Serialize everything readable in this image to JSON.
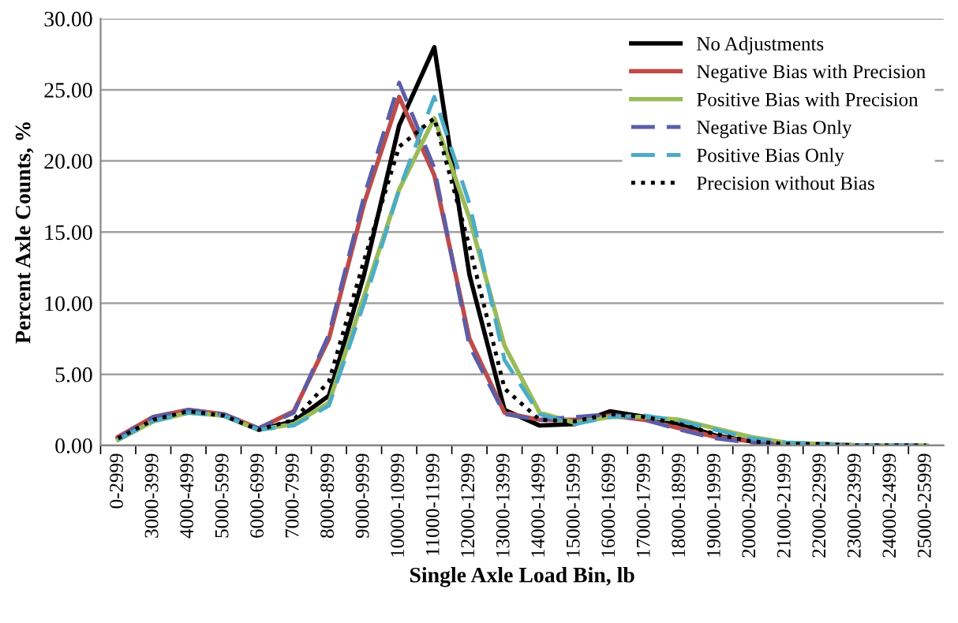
{
  "chart_data": {
    "type": "line",
    "xlabel": "Single Axle Load Bin, lb",
    "ylabel": "Percent Axle Counts, %",
    "categories": [
      "0-2999",
      "3000-3999",
      "4000-4999",
      "5000-5999",
      "6000-6999",
      "7000-7999",
      "8000-8999",
      "9000-9999",
      "10000-10999",
      "11000-11999",
      "12000-12999",
      "13000-13999",
      "14000-14999",
      "15000-15999",
      "16000-16999",
      "17000-17999",
      "18000-18999",
      "19000-19999",
      "20000-20999",
      "21000-21999",
      "22000-22999",
      "23000-23999",
      "24000-24999",
      "25000-25999"
    ],
    "series": [
      {
        "name": "No Adjustments",
        "color": "#000000",
        "line_style": "solid",
        "values": [
          0.5,
          1.9,
          2.4,
          2.1,
          1.1,
          1.7,
          3.5,
          12,
          22.5,
          28,
          12,
          2.5,
          1.4,
          1.5,
          2.4,
          2.0,
          1.5,
          0.7,
          0.3,
          0.1,
          0.1,
          0,
          0,
          0
        ]
      },
      {
        "name": "Negative Bias with Precision",
        "color": "#be4b48",
        "line_style": "solid",
        "values": [
          0.6,
          2.0,
          2.5,
          2.2,
          1.2,
          2.4,
          7.5,
          17,
          24.5,
          19,
          7.5,
          2.3,
          1.8,
          1.8,
          2.1,
          1.8,
          1.2,
          0.6,
          0.3,
          0.1,
          0.1,
          null,
          null,
          null
        ]
      },
      {
        "name": "Positive Bias with Precision",
        "color": "#9bbb59",
        "line_style": "solid",
        "values": [
          0.4,
          1.7,
          2.3,
          2.1,
          1.1,
          1.5,
          3.0,
          10.5,
          18,
          23,
          16,
          7,
          2.3,
          1.6,
          2.0,
          2.0,
          1.8,
          1.2,
          0.6,
          0.2,
          0.1,
          0,
          0,
          0
        ]
      },
      {
        "name": "Negative Bias Only",
        "color": "#5b5ea6",
        "line_style": "dashed",
        "values": [
          0.5,
          2.0,
          2.5,
          2.2,
          1.2,
          2.3,
          7.8,
          17.5,
          25.5,
          19.5,
          7,
          2.2,
          1.8,
          2.0,
          2.2,
          1.8,
          1.1,
          0.5,
          0.2,
          0.1,
          0,
          0,
          0,
          0
        ]
      },
      {
        "name": "Positive Bias Only",
        "color": "#4bacc6",
        "line_style": "dashed",
        "values": [
          0.4,
          1.7,
          2.3,
          2.1,
          1.1,
          1.4,
          2.8,
          10,
          18,
          24.5,
          17,
          6,
          2.2,
          1.5,
          2.0,
          2.1,
          1.7,
          1.1,
          0.5,
          0.2,
          0.1,
          0,
          0,
          0
        ]
      },
      {
        "name": "Precision without Bias",
        "color": "#000000",
        "line_style": "dotted",
        "values": [
          0.5,
          1.8,
          2.4,
          2.1,
          1.1,
          1.8,
          4.5,
          13,
          21,
          23,
          14,
          4,
          1.8,
          1.7,
          2.2,
          2.0,
          1.5,
          0.8,
          0.3,
          0.1,
          0.1,
          0,
          0,
          0
        ]
      }
    ],
    "ylim": [
      0,
      30
    ],
    "yticks": [
      {
        "value": 0,
        "label": "0.00"
      },
      {
        "value": 5,
        "label": "5.00"
      },
      {
        "value": 10,
        "label": "10.00"
      },
      {
        "value": 15,
        "label": "15.00"
      },
      {
        "value": 20,
        "label": "20.00"
      },
      {
        "value": 25,
        "label": "25.00"
      },
      {
        "value": 30,
        "label": "30.00"
      }
    ],
    "grid": "y",
    "legend": "top right",
    "marker": "none"
  }
}
